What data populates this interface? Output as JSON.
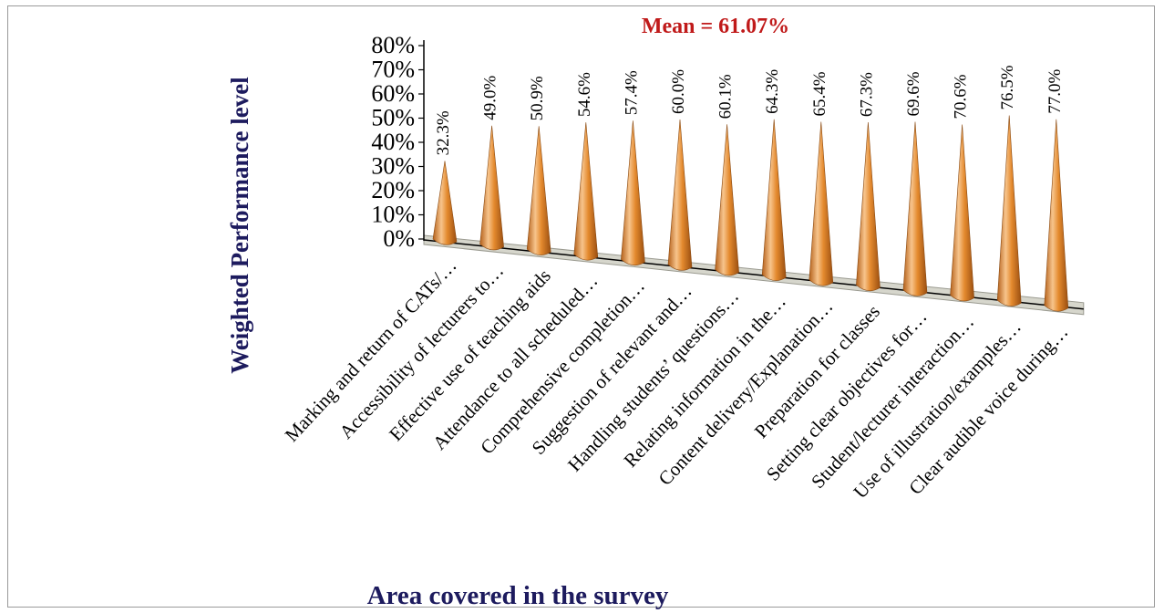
{
  "chart_data": {
    "type": "bar",
    "style": "3d-cone",
    "title": "",
    "annotation": "Mean = 61.07%",
    "ylabel": "Weighted Performance  level",
    "xlabel": "Area covered in  the survey",
    "ylim": [
      0,
      80
    ],
    "yticks": [
      "0%",
      "10%",
      "20%",
      "30%",
      "40%",
      "50%",
      "60%",
      "70%",
      "80%"
    ],
    "categories": [
      "Marking and return of CATs/…",
      "Accessibility of lecturers to…",
      "Effective use of teaching aids",
      "Attendance to all scheduled…",
      "Comprehensive completion…",
      "Suggestion of relevant and…",
      "Handling students’ questions…",
      "Relating information in the…",
      "Content delivery/Explanation…",
      "Preparation for classes",
      "Setting clear objectives for…",
      "Student/lecturer interaction…",
      "Use of illustration/examples…",
      "Clear audible voice during…"
    ],
    "values": [
      32.3,
      49.0,
      50.9,
      54.6,
      57.4,
      60.0,
      60.1,
      64.3,
      65.4,
      67.3,
      69.6,
      70.6,
      76.5,
      77.0
    ],
    "value_labels": [
      "32.3%",
      "49.0%",
      "50.9%",
      "54.6%",
      "57.4%",
      "60.0%",
      "60.1%",
      "64.3%",
      "65.4%",
      "67.3%",
      "69.6%",
      "70.6%",
      "76.5%",
      "77.0%"
    ],
    "grid": false,
    "legend": "none",
    "colors": {
      "cone": "#e48a2e",
      "cone_light": "#f7c48c",
      "cone_dark": "#9a4e10",
      "floor": "#d6d6cc",
      "mean_text": "#c01a1a",
      "axis_title": "#1d1b5e"
    }
  }
}
